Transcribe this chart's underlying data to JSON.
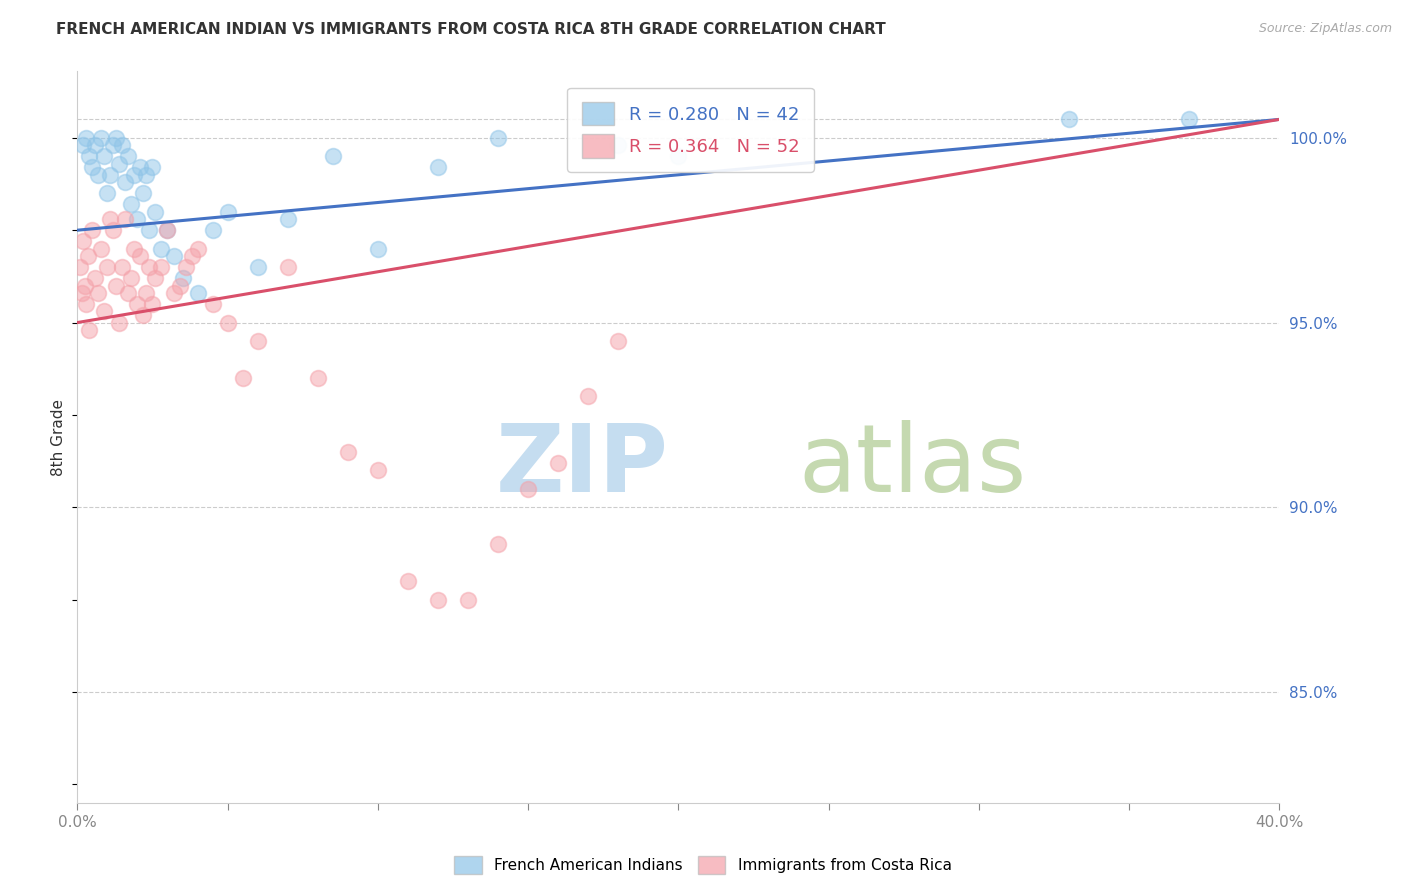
{
  "title": "FRENCH AMERICAN INDIAN VS IMMIGRANTS FROM COSTA RICA 8TH GRADE CORRELATION CHART",
  "source": "Source: ZipAtlas.com",
  "ylabel": "8th Grade",
  "ylabel_right_ticks": [
    85.0,
    90.0,
    95.0,
    100.0
  ],
  "ylabel_right_labels": [
    "85.0%",
    "90.0%",
    "95.0%",
    "100.0%"
  ],
  "xmin": 0.0,
  "xmax": 40.0,
  "ymin": 82.0,
  "ymax": 101.8,
  "blue_R": 0.28,
  "blue_N": 42,
  "pink_R": 0.364,
  "pink_N": 52,
  "legend_label_blue": "French American Indians",
  "legend_label_pink": "Immigrants from Costa Rica",
  "blue_color": "#8ec4e8",
  "pink_color": "#f4a0a8",
  "blue_line_color": "#4472c4",
  "pink_line_color": "#d94f6a",
  "blue_x": [
    0.2,
    0.3,
    0.4,
    0.5,
    0.6,
    0.7,
    0.8,
    0.9,
    1.0,
    1.1,
    1.2,
    1.3,
    1.4,
    1.5,
    1.6,
    1.7,
    1.8,
    1.9,
    2.0,
    2.1,
    2.2,
    2.3,
    2.4,
    2.5,
    2.6,
    2.8,
    3.0,
    3.2,
    3.5,
    4.0,
    4.5,
    5.0,
    6.0,
    7.0,
    8.5,
    10.0,
    12.0,
    14.0,
    18.0,
    20.0,
    33.0,
    37.0
  ],
  "blue_y": [
    99.8,
    100.0,
    99.5,
    99.2,
    99.8,
    99.0,
    100.0,
    99.5,
    98.5,
    99.0,
    99.8,
    100.0,
    99.3,
    99.8,
    98.8,
    99.5,
    98.2,
    99.0,
    97.8,
    99.2,
    98.5,
    99.0,
    97.5,
    99.2,
    98.0,
    97.0,
    97.5,
    96.8,
    96.2,
    95.8,
    97.5,
    98.0,
    96.5,
    97.8,
    99.5,
    97.0,
    99.2,
    100.0,
    99.8,
    99.5,
    100.5,
    100.5
  ],
  "pink_x": [
    0.1,
    0.15,
    0.2,
    0.25,
    0.3,
    0.35,
    0.4,
    0.5,
    0.6,
    0.7,
    0.8,
    0.9,
    1.0,
    1.1,
    1.2,
    1.3,
    1.4,
    1.5,
    1.6,
    1.7,
    1.8,
    1.9,
    2.0,
    2.1,
    2.2,
    2.3,
    2.4,
    2.5,
    2.6,
    2.8,
    3.0,
    3.2,
    3.4,
    3.6,
    3.8,
    4.0,
    4.5,
    5.0,
    5.5,
    6.0,
    7.0,
    8.0,
    9.0,
    10.0,
    11.0,
    12.0,
    13.0,
    14.0,
    15.0,
    16.0,
    17.0,
    18.0
  ],
  "pink_y": [
    96.5,
    95.8,
    97.2,
    96.0,
    95.5,
    96.8,
    94.8,
    97.5,
    96.2,
    95.8,
    97.0,
    95.3,
    96.5,
    97.8,
    97.5,
    96.0,
    95.0,
    96.5,
    97.8,
    95.8,
    96.2,
    97.0,
    95.5,
    96.8,
    95.2,
    95.8,
    96.5,
    95.5,
    96.2,
    96.5,
    97.5,
    95.8,
    96.0,
    96.5,
    96.8,
    97.0,
    95.5,
    95.0,
    93.5,
    94.5,
    96.5,
    93.5,
    91.5,
    91.0,
    88.0,
    87.5,
    87.5,
    89.0,
    90.5,
    91.2,
    93.0,
    94.5
  ]
}
